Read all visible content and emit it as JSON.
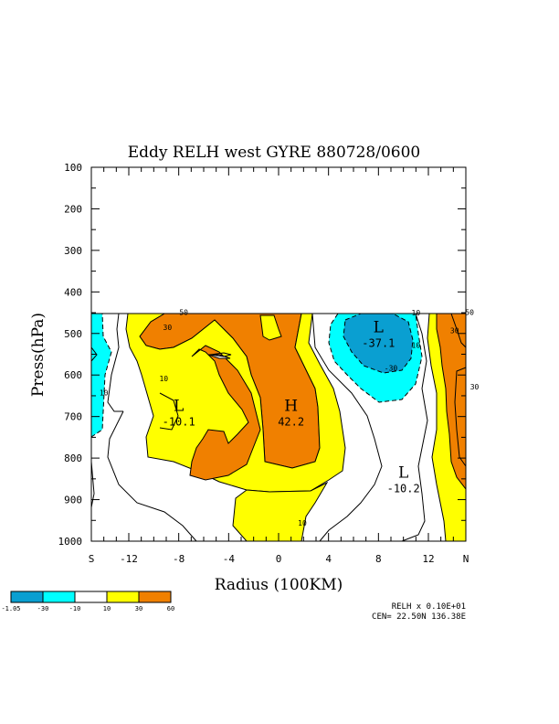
{
  "chart_data": {
    "type": "contour",
    "title": "Eddy RELH west GYRE 880728/0600",
    "xlabel": "Radius (100KM)",
    "ylabel": "Press(hPa)",
    "x_range": [
      -15,
      15
    ],
    "y_range": [
      100,
      1000
    ],
    "y_reversed": true,
    "data_top_pressure": 450,
    "x_ticks": [
      {
        "label": "S",
        "value": -15
      },
      {
        "label": "-12",
        "value": -12
      },
      {
        "label": "-8",
        "value": -8
      },
      {
        "label": "-4",
        "value": -4
      },
      {
        "label": "0",
        "value": 0
      },
      {
        "label": "4",
        "value": 4
      },
      {
        "label": "8",
        "value": 8
      },
      {
        "label": "12",
        "value": 12
      },
      {
        "label": "N",
        "value": 15
      }
    ],
    "y_ticks": [
      {
        "label": "100",
        "value": 100
      },
      {
        "label": "200",
        "value": 200
      },
      {
        "label": "300",
        "value": 300
      },
      {
        "label": "400",
        "value": 400
      },
      {
        "label": "500",
        "value": 500
      },
      {
        "label": "600",
        "value": 600
      },
      {
        "label": "700",
        "value": 700
      },
      {
        "label": "800",
        "value": 800
      },
      {
        "label": "900",
        "value": 900
      },
      {
        "label": "1000",
        "value": 1000
      }
    ],
    "extrema": [
      {
        "type": "L",
        "value": "-37.1",
        "x": 8,
        "p": 510
      },
      {
        "type": "H",
        "value": "42.2",
        "x": 1,
        "p": 700
      },
      {
        "type": "L",
        "value": "-10.1",
        "x": -8,
        "p": 700
      },
      {
        "type": "L",
        "value": "-10.2",
        "x": 10,
        "p": 860
      }
    ],
    "contour_labels": [
      {
        "text": "50",
        "x": -7.6,
        "p": 451
      },
      {
        "text": "30",
        "x": -8.9,
        "p": 487
      },
      {
        "text": "10",
        "x": -9.2,
        "p": 610
      },
      {
        "text": "10",
        "x": -14,
        "p": 645
      },
      {
        "text": "10",
        "x": 1.9,
        "p": 958
      },
      {
        "text": "10",
        "x": 11,
        "p": 452
      },
      {
        "text": "10",
        "x": 11,
        "p": 530
      },
      {
        "text": "-30",
        "x": 9,
        "p": 585
      },
      {
        "text": "50",
        "x": 15.3,
        "p": 451
      },
      {
        "text": "30",
        "x": 14.1,
        "p": 495
      },
      {
        "text": "30",
        "x": 15.7,
        "p": 630
      }
    ],
    "legend": {
      "levels": [
        "-1.05",
        "-30",
        "-10",
        "10",
        "30",
        "60"
      ],
      "colors": [
        "#0a9fd1",
        "#00ffff",
        "#ffffff",
        "#ffff00",
        "#f08000"
      ]
    },
    "footer": {
      "line1": "RELH x  0.10E+01",
      "line2": "CEN= 22.50N  136.38E"
    }
  }
}
